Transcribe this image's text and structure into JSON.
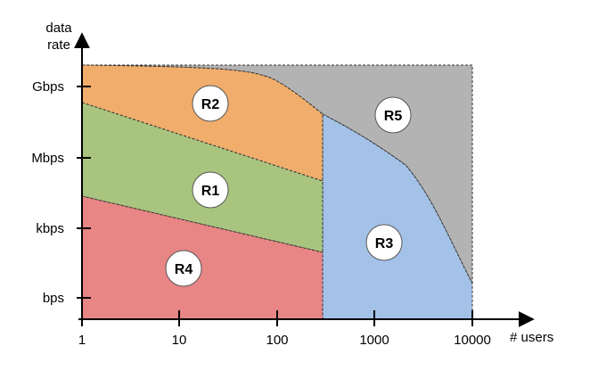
{
  "y_axis_title_line1": "data",
  "y_axis_title_line2": "rate",
  "x_axis_title": "# users",
  "x_ticks": [
    "1",
    "10",
    "100",
    "1000",
    "10000"
  ],
  "y_ticks": [
    "bps",
    "kbps",
    "Mbps",
    "Gbps"
  ],
  "regions": [
    {
      "key": "r1",
      "label": "R1",
      "color": "#a9c47f"
    },
    {
      "key": "r2",
      "label": "R2",
      "color": "#f0ad6c"
    },
    {
      "key": "r3",
      "label": "R3",
      "color": "#a4c2e8"
    },
    {
      "key": "r4",
      "label": "R4",
      "color": "#e88585"
    },
    {
      "key": "r5",
      "label": "R5",
      "color": "#b3b3b3"
    }
  ],
  "colors": {
    "axis": "#000000",
    "boundary": "#333333",
    "label_circle": "#ffffff"
  }
}
